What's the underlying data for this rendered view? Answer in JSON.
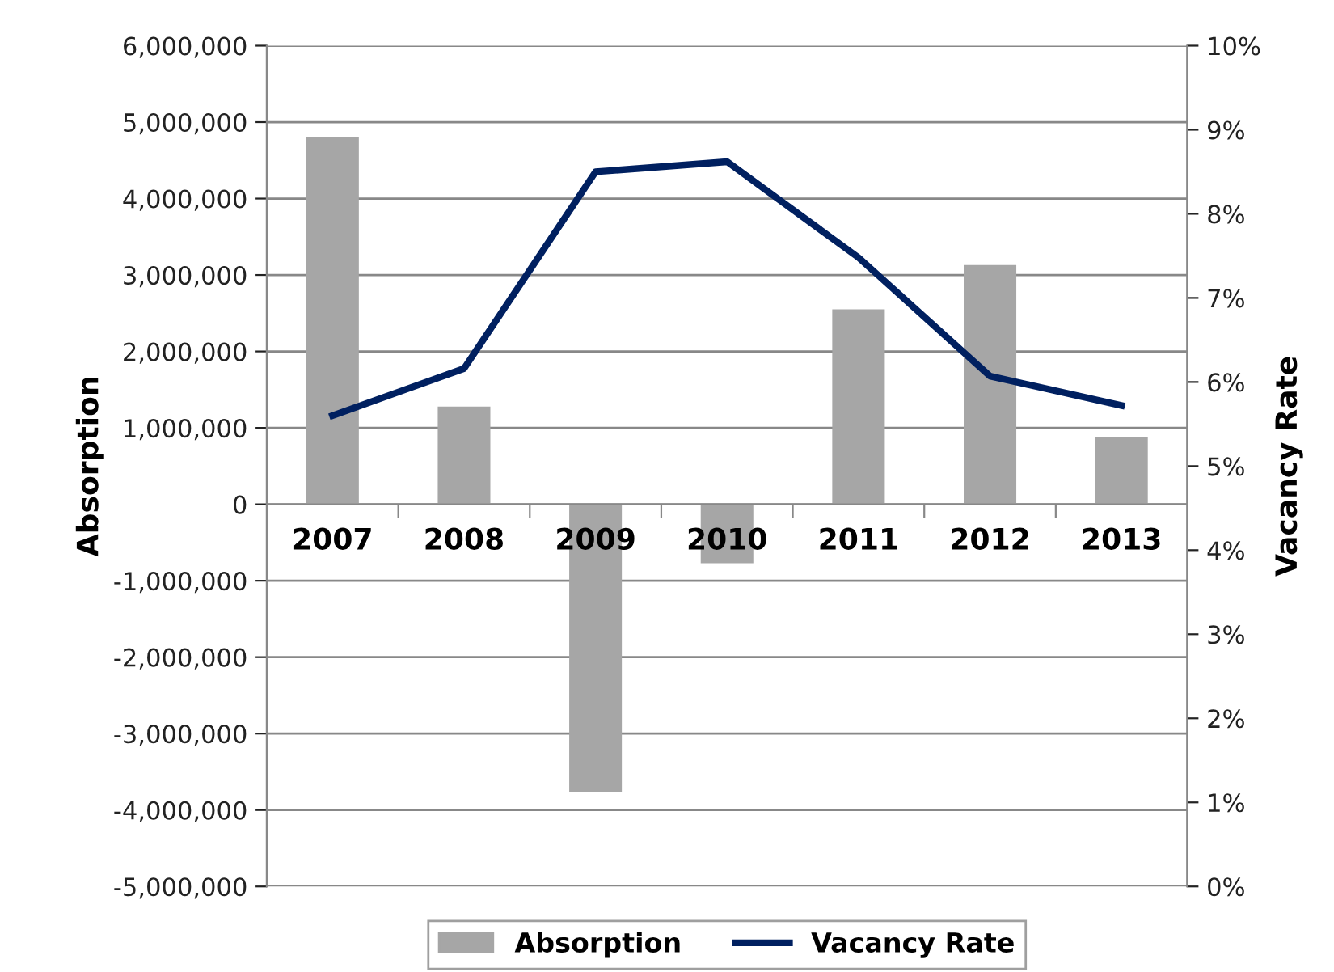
{
  "chart_data": {
    "type": "bar",
    "ylabel": "Absorption",
    "y2label": "Vacancy Rate",
    "categories": [
      "2007",
      "2008",
      "2009",
      "2010",
      "2011",
      "2012",
      "2013"
    ],
    "series": [
      {
        "name": "Absorption",
        "color": "#a6a6a6",
        "values": [
          4810000,
          1280000,
          -3770000,
          -770000,
          2550000,
          3130000,
          880000
        ]
      },
      {
        "name": "Vacancy Rate",
        "type": "line",
        "axis": "y2",
        "color": "#002060",
        "values": [
          5.6,
          6.16,
          8.5,
          8.62,
          7.48,
          6.07,
          5.72
        ]
      }
    ],
    "ylim": [
      -5000000,
      6000000
    ],
    "yticks": [
      {
        "value": -5000000,
        "label": "-5,000,000"
      },
      {
        "value": -4000000,
        "label": "-4,000,000"
      },
      {
        "value": -3000000,
        "label": "-3,000,000"
      },
      {
        "value": -2000000,
        "label": "-2,000,000"
      },
      {
        "value": -1000000,
        "label": "-1,000,000"
      },
      0,
      {
        "value": 1000000,
        "label": "1,000,000"
      },
      {
        "value": 2000000,
        "label": "2,000,000"
      },
      {
        "value": 3000000,
        "label": "3,000,000"
      },
      {
        "value": 4000000,
        "label": "4,000,000"
      },
      {
        "value": 5000000,
        "label": "5,000,000"
      },
      {
        "value": 6000000,
        "label": "6,000,000"
      }
    ],
    "y2lim": [
      0,
      10
    ],
    "y2ticks": [
      {
        "value": 0,
        "label": "0%"
      },
      {
        "value": 1,
        "label": "1%"
      },
      {
        "value": 2,
        "label": "2%"
      },
      {
        "value": 3,
        "label": "3%"
      },
      {
        "value": 4,
        "label": "4%"
      },
      {
        "value": 5,
        "label": "5%"
      },
      {
        "value": 6,
        "label": "6%"
      },
      {
        "value": 7,
        "label": "7%"
      },
      {
        "value": 8,
        "label": "8%"
      },
      {
        "value": 9,
        "label": "9%"
      },
      {
        "value": 10,
        "label": "10%"
      }
    ],
    "grid": "y",
    "legend": "bottom",
    "marker": "none",
    "line_style": "solid"
  }
}
